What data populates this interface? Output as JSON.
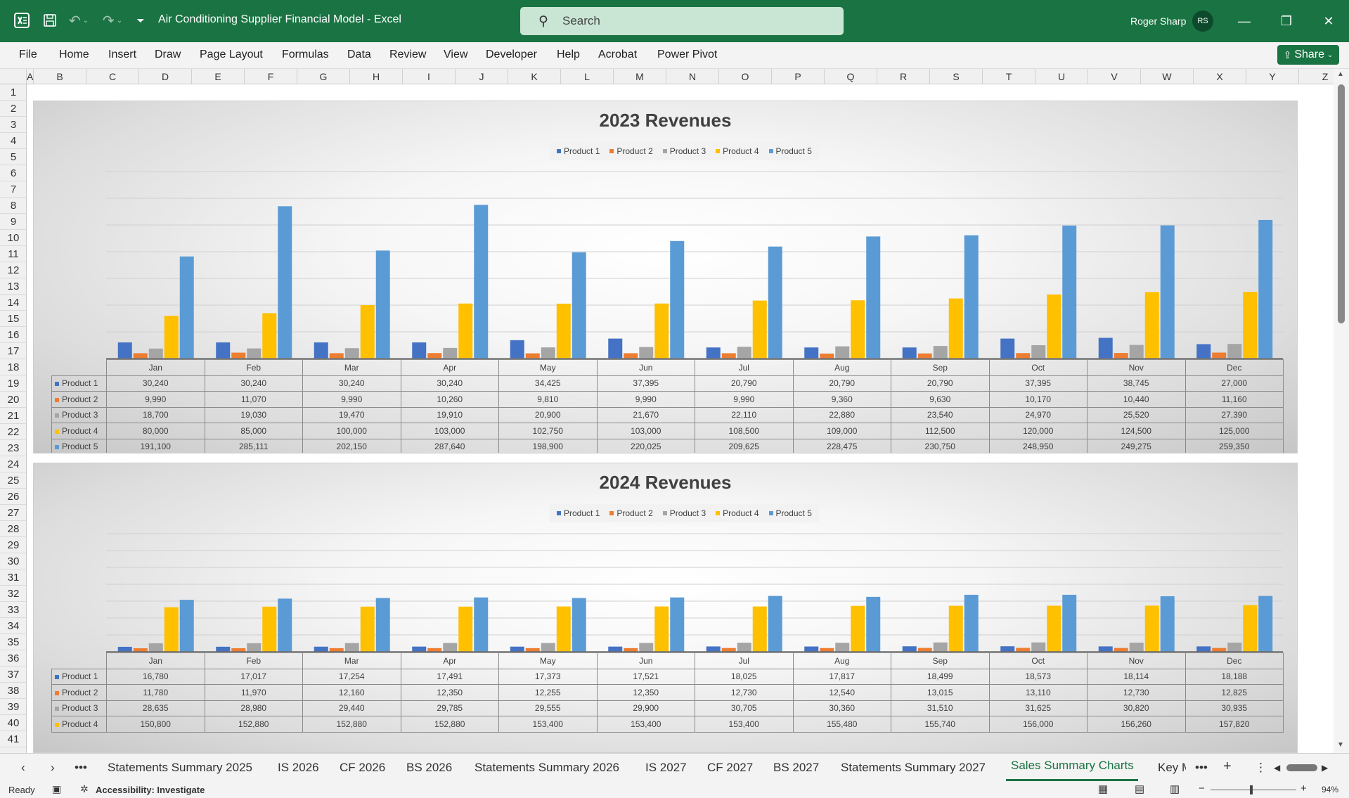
{
  "titlebar": {
    "doc_title": "Air Conditioning Supplier Financial Model  -  Excel",
    "search_placeholder": "Search",
    "user_name": "Roger Sharp",
    "user_initials": "RS"
  },
  "ribbon": {
    "tabs": [
      "File",
      "Home",
      "Insert",
      "Draw",
      "Page Layout",
      "Formulas",
      "Data",
      "Review",
      "View",
      "Developer",
      "Help",
      "Acrobat",
      "Power Pivot"
    ],
    "share_label": "Share"
  },
  "grid": {
    "columns": [
      "A",
      "B",
      "C",
      "D",
      "E",
      "F",
      "G",
      "H",
      "I",
      "J",
      "K",
      "L",
      "M",
      "N",
      "O",
      "P",
      "Q",
      "R",
      "S",
      "T",
      "U",
      "V",
      "W",
      "X",
      "Y",
      "Z"
    ],
    "rows": [
      "1",
      "2",
      "3",
      "4",
      "5",
      "6",
      "7",
      "8",
      "9",
      "10",
      "11",
      "12",
      "13",
      "14",
      "15",
      "16",
      "17",
      "18",
      "19",
      "20",
      "21",
      "22",
      "23",
      "24",
      "25",
      "26",
      "27",
      "28",
      "29",
      "30",
      "31",
      "32",
      "33",
      "34",
      "35",
      "36",
      "37",
      "38",
      "39",
      "40",
      "41"
    ]
  },
  "colors": {
    "Product 1": "#4472c4",
    "Product 2": "#ed7d31",
    "Product 3": "#a5a5a5",
    "Product 4": "#ffc000",
    "Product 5": "#5b9bd5"
  },
  "chart_data": [
    {
      "type": "bar",
      "title": "2023 Revenues",
      "categories": [
        "Jan",
        "Feb",
        "Mar",
        "Apr",
        "May",
        "Jun",
        "Jul",
        "Aug",
        "Sep",
        "Oct",
        "Nov",
        "Dec"
      ],
      "series": [
        {
          "name": "Product 1",
          "values": [
            30240,
            30240,
            30240,
            30240,
            34425,
            37395,
            20790,
            20790,
            20790,
            37395,
            38745,
            27000
          ],
          "labels": [
            "30,240",
            "30,240",
            "30,240",
            "30,240",
            "34,425",
            "37,395",
            "20,790",
            "20,790",
            "20,790",
            "37,395",
            "38,745",
            "27,000"
          ]
        },
        {
          "name": "Product 2",
          "values": [
            9990,
            11070,
            9990,
            10260,
            9810,
            9990,
            9990,
            9360,
            9630,
            10170,
            10440,
            11160
          ],
          "labels": [
            "9,990",
            "11,070",
            "9,990",
            "10,260",
            "9,810",
            "9,990",
            "9,990",
            "9,360",
            "9,630",
            "10,170",
            "10,440",
            "11,160"
          ]
        },
        {
          "name": "Product 3",
          "values": [
            18700,
            19030,
            19470,
            19910,
            20900,
            21670,
            22110,
            22880,
            23540,
            24970,
            25520,
            27390
          ],
          "labels": [
            "18,700",
            "19,030",
            "19,470",
            "19,910",
            "20,900",
            "21,670",
            "22,110",
            "22,880",
            "23,540",
            "24,970",
            "25,520",
            "27,390"
          ]
        },
        {
          "name": "Product 4",
          "values": [
            80000,
            85000,
            100000,
            103000,
            102750,
            103000,
            108500,
            109000,
            112500,
            120000,
            124500,
            125000
          ],
          "labels": [
            "80,000",
            "85,000",
            "100,000",
            "103,000",
            "102,750",
            "103,000",
            "108,500",
            "109,000",
            "112,500",
            "120,000",
            "124,500",
            "125,000"
          ]
        },
        {
          "name": "Product 5",
          "values": [
            191100,
            285111,
            202150,
            287640,
            198900,
            220025,
            209625,
            228475,
            230750,
            248950,
            249275,
            259350
          ],
          "labels": [
            "191,100",
            "285,111",
            "202,150",
            "287,640",
            "198,900",
            "220,025",
            "209,625",
            "228,475",
            "230,750",
            "248,950",
            "249,275",
            "259,350"
          ]
        }
      ],
      "ylim": [
        0,
        350000
      ]
    },
    {
      "type": "bar",
      "title": "2024 Revenues",
      "categories": [
        "Jan",
        "Feb",
        "Mar",
        "Apr",
        "May",
        "Jun",
        "Jul",
        "Aug",
        "Sep",
        "Oct",
        "Nov",
        "Dec"
      ],
      "series": [
        {
          "name": "Product 1",
          "values": [
            16780,
            17017,
            17254,
            17491,
            17373,
            17521,
            18025,
            17817,
            18499,
            18573,
            18114,
            18188
          ],
          "labels": [
            "16,780",
            "17,017",
            "17,254",
            "17,491",
            "17,373",
            "17,521",
            "18,025",
            "17,817",
            "18,499",
            "18,573",
            "18,114",
            "18,188"
          ]
        },
        {
          "name": "Product 2",
          "values": [
            11780,
            11970,
            12160,
            12350,
            12255,
            12350,
            12730,
            12540,
            13015,
            13110,
            12730,
            12825
          ],
          "labels": [
            "11,780",
            "11,970",
            "12,160",
            "12,350",
            "12,255",
            "12,350",
            "12,730",
            "12,540",
            "13,015",
            "13,110",
            "12,730",
            "12,825"
          ]
        },
        {
          "name": "Product 3",
          "values": [
            28635,
            28980,
            29440,
            29785,
            29555,
            29900,
            30705,
            30360,
            31510,
            31625,
            30820,
            30935
          ],
          "labels": [
            "28,635",
            "28,980",
            "29,440",
            "29,785",
            "29,555",
            "29,900",
            "30,705",
            "30,360",
            "31,510",
            "31,625",
            "30,820",
            "30,935"
          ]
        },
        {
          "name": "Product 4",
          "values": [
            150800,
            152880,
            152880,
            152880,
            153400,
            153400,
            153400,
            155480,
            155740,
            156000,
            156260,
            157820
          ],
          "labels": [
            "150,800",
            "152,880",
            "152,880",
            "152,880",
            "153,400",
            "153,400",
            "153,400",
            "155,480",
            "155,740",
            "156,000",
            "156,260",
            "157,820"
          ]
        },
        {
          "name": "Product 5",
          "values": [
            null,
            null,
            null,
            null,
            null,
            null,
            null,
            null,
            null,
            null,
            null,
            null
          ],
          "labels": []
        }
      ],
      "ylim": [
        0,
        400000
      ]
    }
  ],
  "sheet_tabs": [
    "Statements Summary 2025",
    "IS 2026",
    "CF 2026",
    "BS 2026",
    "Statements Summary 2026",
    "IS 2027",
    "CF 2027",
    "BS 2027",
    "Statements Summary 2027",
    "Sales Summary Charts",
    "Key M"
  ],
  "active_sheet": "Sales Summary Charts",
  "status": {
    "ready": "Ready",
    "accessibility": "Accessibility: Investigate",
    "zoom": "94%"
  }
}
